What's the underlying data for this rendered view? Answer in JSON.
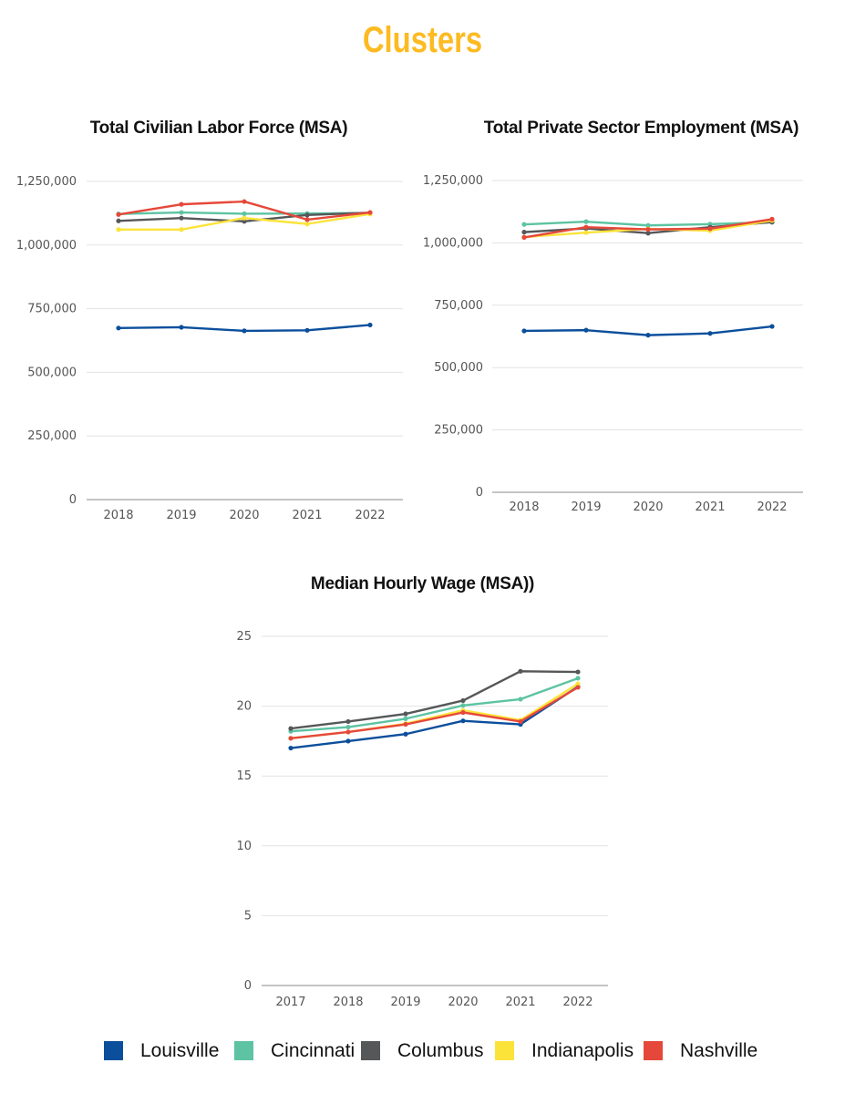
{
  "page": {
    "title": "Clusters",
    "title_color": "#FDBA21"
  },
  "legend": [
    {
      "label": "Louisville",
      "color": "#0B4F9C"
    },
    {
      "label": "Cincinnati",
      "color": "#5DC3A2"
    },
    {
      "label": "Columbus",
      "color": "#555759"
    },
    {
      "label": "Indianapolis",
      "color": "#FCE33A"
    },
    {
      "label": "Nashville",
      "color": "#E5483A"
    }
  ],
  "chart_data": [
    {
      "type": "line",
      "title": "Total Civilian Labor Force (MSA)",
      "x": [
        "2018",
        "2019",
        "2020",
        "2021",
        "2022"
      ],
      "ylim": [
        0,
        1250000
      ],
      "yticks": [
        0,
        250000,
        500000,
        750000,
        1000000,
        1250000
      ],
      "ytick_labels": [
        "0",
        "250,000",
        "500,000",
        "750,000",
        "1,000,000",
        "1,250,000"
      ],
      "grid": true,
      "series": [
        {
          "name": "Louisville",
          "color": "#0B4F9C",
          "values": [
            674000,
            677000,
            663000,
            665000,
            686000
          ]
        },
        {
          "name": "Cincinnati",
          "color": "#5DC3A2",
          "values": [
            1122000,
            1128000,
            1123000,
            1124000,
            1126000
          ]
        },
        {
          "name": "Columbus",
          "color": "#555759",
          "values": [
            1095000,
            1106000,
            1093000,
            1118000,
            1127000
          ]
        },
        {
          "name": "Indianapolis",
          "color": "#FCE33A",
          "values": [
            1061000,
            1061000,
            1106000,
            1083000,
            1122000
          ]
        },
        {
          "name": "Nashville",
          "color": "#E5483A",
          "values": [
            1120000,
            1160000,
            1171000,
            1100000,
            1128000
          ]
        }
      ]
    },
    {
      "type": "line",
      "title": "Total Private Sector Employment (MSA)",
      "x": [
        "2018",
        "2019",
        "2020",
        "2021",
        "2022"
      ],
      "ylim": [
        0,
        1250000
      ],
      "yticks": [
        0,
        250000,
        500000,
        750000,
        1000000,
        1250000
      ],
      "ytick_labels": [
        "0",
        "250,000",
        "500,000",
        "750,000",
        "1,000,000",
        "1,250,000"
      ],
      "grid": true,
      "series": [
        {
          "name": "Louisville",
          "color": "#0B4F9C",
          "values": [
            647000,
            650000,
            630000,
            637000,
            665000
          ]
        },
        {
          "name": "Cincinnati",
          "color": "#5DC3A2",
          "values": [
            1074000,
            1085000,
            1070000,
            1075000,
            1083000
          ]
        },
        {
          "name": "Columbus",
          "color": "#555759",
          "values": [
            1043000,
            1058000,
            1039000,
            1063000,
            1083000
          ]
        },
        {
          "name": "Indianapolis",
          "color": "#FCE33A",
          "values": [
            1023000,
            1041000,
            1056000,
            1049000,
            1090000
          ]
        },
        {
          "name": "Nashville",
          "color": "#E5483A",
          "values": [
            1022000,
            1063000,
            1054000,
            1057000,
            1095000
          ]
        }
      ]
    },
    {
      "type": "line",
      "title": "Median Hourly Wage (MSA))",
      "x": [
        "2017",
        "2018",
        "2019",
        "2020",
        "2021",
        "2022"
      ],
      "ylim": [
        0,
        25
      ],
      "yticks": [
        0,
        5,
        10,
        15,
        20,
        25
      ],
      "ytick_labels": [
        "0",
        "5",
        "10",
        "15",
        "20",
        "25"
      ],
      "grid": true,
      "series": [
        {
          "name": "Louisville",
          "color": "#0B4F9C",
          "values": [
            17.0,
            17.5,
            18.0,
            18.95,
            18.7,
            21.4
          ]
        },
        {
          "name": "Cincinnati",
          "color": "#5DC3A2",
          "values": [
            18.2,
            18.5,
            19.1,
            20.05,
            20.5,
            22.0
          ]
        },
        {
          "name": "Columbus",
          "color": "#555759",
          "values": [
            18.4,
            18.9,
            19.45,
            20.4,
            22.5,
            22.45
          ]
        },
        {
          "name": "Indianapolis",
          "color": "#FCE33A",
          "values": [
            17.7,
            18.15,
            18.75,
            19.7,
            19.0,
            21.6
          ]
        },
        {
          "name": "Nashville",
          "color": "#E5483A",
          "values": [
            17.7,
            18.15,
            18.7,
            19.55,
            18.9,
            21.35
          ]
        }
      ]
    }
  ]
}
